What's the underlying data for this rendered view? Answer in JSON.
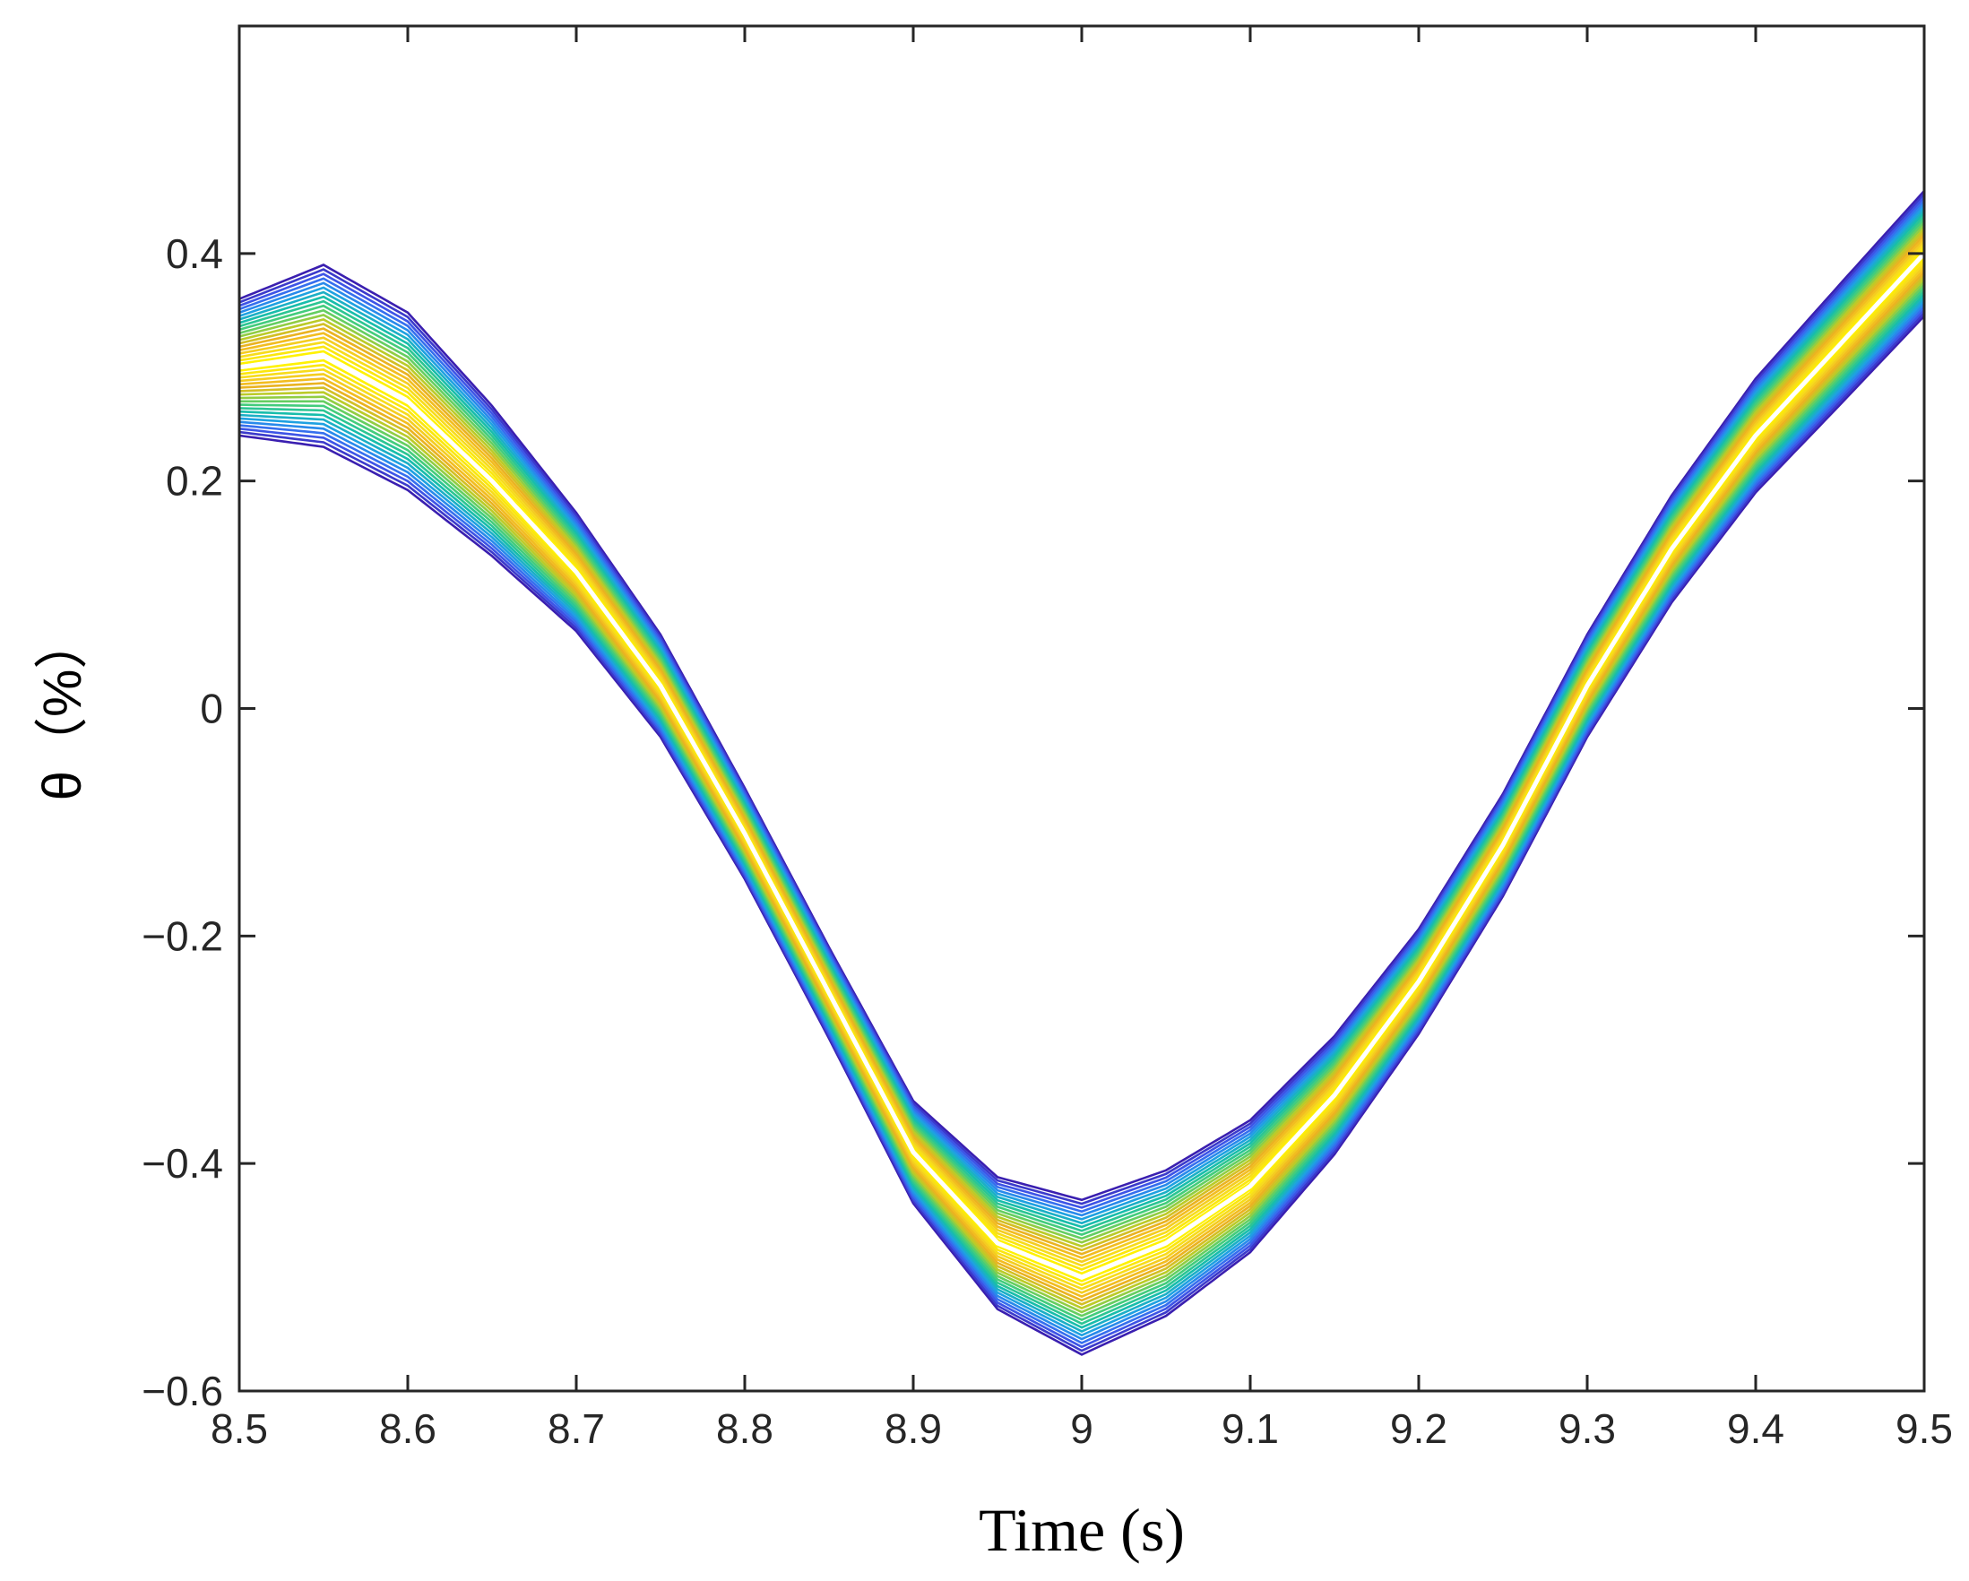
{
  "chart_data": {
    "type": "contour",
    "title": "",
    "xlabel": "Time (s)",
    "ylabel": "θ（%）",
    "xlim": [
      8.5,
      9.5
    ],
    "ylim": [
      -0.6,
      0.6
    ],
    "xticks": [
      8.5,
      8.6,
      8.7,
      8.8,
      8.9,
      9.0,
      9.1,
      9.2,
      9.3,
      9.4,
      9.5
    ],
    "xtick_labels": [
      "8.5",
      "8.6",
      "8.7",
      "8.8",
      "8.9",
      "9",
      "9.1",
      "9.2",
      "9.3",
      "9.4",
      "9.5"
    ],
    "yticks": [
      -0.6,
      -0.4,
      -0.2,
      0,
      0.2,
      0.4
    ],
    "ytick_labels": [
      "−0.6",
      "−0.4",
      "−0.2",
      "0",
      "0.2",
      "0.4"
    ],
    "grid": false,
    "colormap": [
      "#3a1fb0",
      "#3d5ef0",
      "#1f9ee8",
      "#18bfa8",
      "#4fcf70",
      "#b8cc28",
      "#f0b020",
      "#f5d820",
      "#fff200"
    ],
    "ridge": {
      "time": [
        8.5,
        8.55,
        8.6,
        8.65,
        8.7,
        8.75,
        8.8,
        8.85,
        8.9,
        8.95,
        9.0,
        9.05,
        9.1,
        9.15,
        9.2,
        9.25,
        9.3,
        9.35,
        9.4,
        9.45,
        9.5
      ],
      "theta": [
        0.3,
        0.31,
        0.27,
        0.2,
        0.12,
        0.02,
        -0.11,
        -0.25,
        -0.39,
        -0.47,
        -0.5,
        -0.47,
        -0.42,
        -0.34,
        -0.24,
        -0.12,
        0.02,
        0.14,
        0.24,
        0.32,
        0.4
      ]
    },
    "band_half_width": {
      "time": [
        8.5,
        8.55,
        8.6,
        8.65,
        8.7,
        8.75,
        8.8,
        8.85,
        8.9,
        8.95,
        9.0,
        9.05,
        9.1,
        9.15,
        9.2,
        9.25,
        9.3,
        9.35,
        9.4,
        9.45,
        9.5
      ],
      "value": [
        0.06,
        0.08,
        0.078,
        0.066,
        0.052,
        0.045,
        0.04,
        0.04,
        0.045,
        0.058,
        0.068,
        0.064,
        0.058,
        0.052,
        0.046,
        0.045,
        0.045,
        0.047,
        0.05,
        0.053,
        0.055
      ]
    },
    "contour_levels": 20
  }
}
